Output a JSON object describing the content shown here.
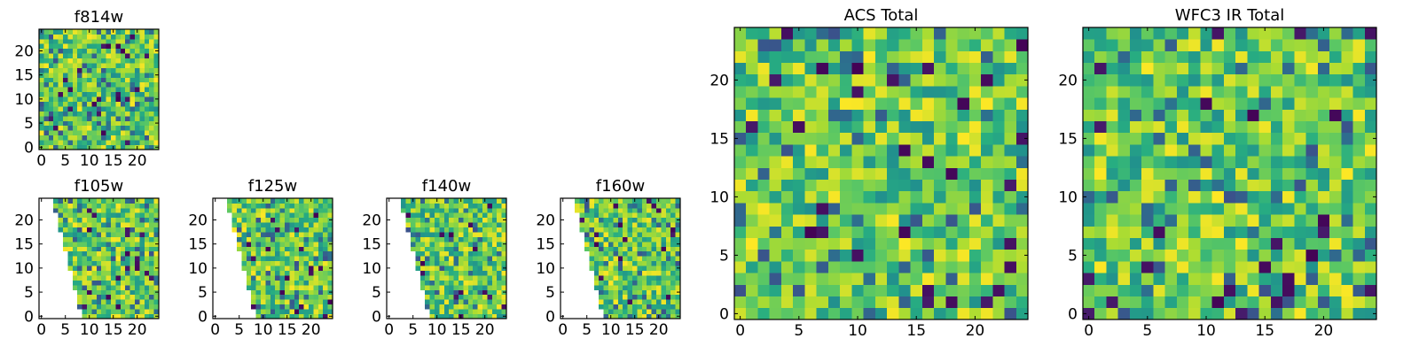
{
  "figure": {
    "background": "#ffffff",
    "colormap": "viridis"
  },
  "chart_data": [
    {
      "type": "heatmap",
      "title": "f814w",
      "xlim": [
        -0.5,
        24.5
      ],
      "ylim": [
        -0.5,
        24.5
      ],
      "xticks": [
        0,
        5,
        10,
        15,
        20
      ],
      "yticks": [
        0,
        5,
        10,
        15,
        20
      ],
      "value_range": [
        0,
        1
      ],
      "mask": "none",
      "seed": 11
    },
    {
      "type": "heatmap",
      "title": "f105w",
      "xlim": [
        -0.5,
        24.5
      ],
      "ylim": [
        -0.5,
        24.5
      ],
      "xticks": [
        0,
        5,
        10,
        15,
        20
      ],
      "yticks": [
        0,
        5,
        10,
        15,
        20
      ],
      "value_range": [
        0,
        1
      ],
      "mask": "left-wedge",
      "seed": 23
    },
    {
      "type": "heatmap",
      "title": "f125w",
      "xlim": [
        -0.5,
        24.5
      ],
      "ylim": [
        -0.5,
        24.5
      ],
      "xticks": [
        0,
        5,
        10,
        15,
        20
      ],
      "yticks": [
        0,
        5,
        10,
        15,
        20
      ],
      "value_range": [
        0,
        1
      ],
      "mask": "left-wedge",
      "seed": 37
    },
    {
      "type": "heatmap",
      "title": "f140w",
      "xlim": [
        -0.5,
        24.5
      ],
      "ylim": [
        -0.5,
        24.5
      ],
      "xticks": [
        0,
        5,
        10,
        15,
        20
      ],
      "yticks": [
        0,
        5,
        10,
        15,
        20
      ],
      "value_range": [
        0,
        1
      ],
      "mask": "left-wedge",
      "seed": 41
    },
    {
      "type": "heatmap",
      "title": "f160w",
      "xlim": [
        -0.5,
        24.5
      ],
      "ylim": [
        -0.5,
        24.5
      ],
      "xticks": [
        0,
        5,
        10,
        15,
        20
      ],
      "yticks": [
        0,
        5,
        10,
        15,
        20
      ],
      "value_range": [
        0,
        1
      ],
      "mask": "left-wedge",
      "seed": 53
    },
    {
      "type": "heatmap",
      "title": "ACS Total",
      "xlim": [
        -0.5,
        24.5
      ],
      "ylim": [
        -0.5,
        24.5
      ],
      "xticks": [
        0,
        5,
        10,
        15,
        20
      ],
      "yticks": [
        0,
        5,
        10,
        15,
        20
      ],
      "value_range": [
        0,
        1
      ],
      "mask": "none",
      "seed": 67
    },
    {
      "type": "heatmap",
      "title": "WFC3 IR Total",
      "xlim": [
        -0.5,
        24.5
      ],
      "ylim": [
        -0.5,
        24.5
      ],
      "xticks": [
        0,
        5,
        10,
        15,
        20
      ],
      "yticks": [
        0,
        5,
        10,
        15,
        20
      ],
      "value_range": [
        0,
        1
      ],
      "mask": "none",
      "seed": 79
    }
  ]
}
